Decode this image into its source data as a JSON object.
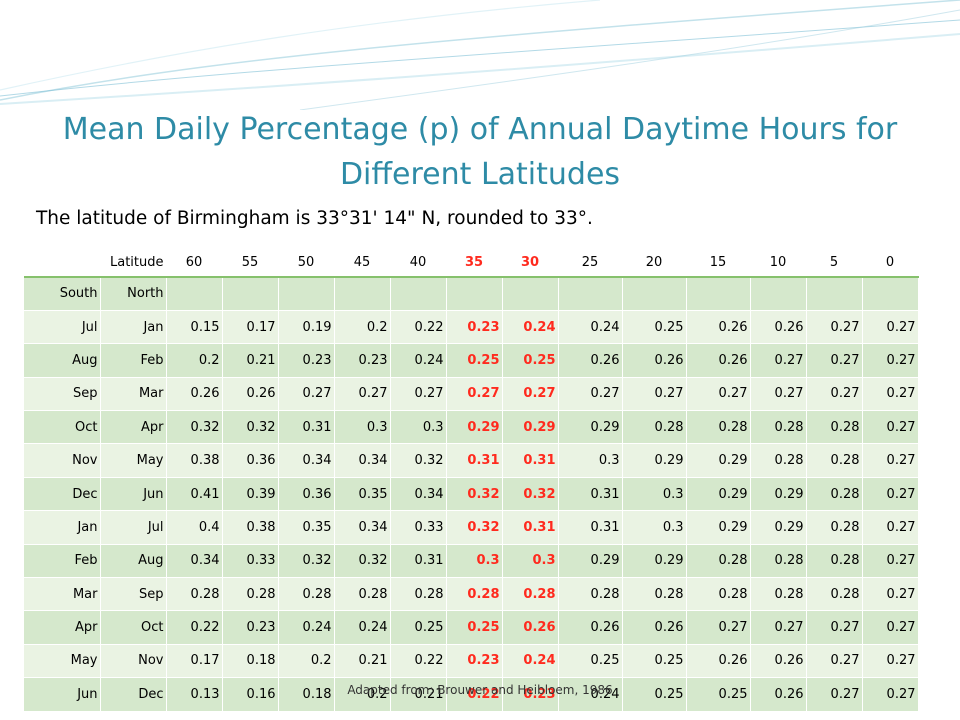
{
  "slide": {
    "title": "Mean Daily Percentage (p) of Annual Daytime Hours for Different Latitudes",
    "subtitle": "The latitude of Birmingham is 33°31' 14\" N, rounded to 33°.",
    "source": "Adapted from: Brouwer and Heibloem, 1986"
  },
  "colors": {
    "title": "#2e8ba6",
    "highlight": "#ff2a1e",
    "row_band_dark": "#d5e8cc",
    "row_band_light": "#eaf3e3",
    "header_rule": "#86c16c"
  },
  "table": {
    "header_label": "Latitude",
    "latitudes": [
      "60",
      "55",
      "50",
      "45",
      "40",
      "35",
      "30",
      "25",
      "20",
      "15",
      "10",
      "5",
      "0"
    ],
    "highlight_columns": [
      "35",
      "30"
    ],
    "hemisphere_labels": [
      "South",
      "North"
    ],
    "rows": [
      {
        "south": "Jul",
        "north": "Jan",
        "values": [
          "0.15",
          "0.17",
          "0.19",
          "0.2",
          "0.22",
          "0.23",
          "0.24",
          "0.24",
          "0.25",
          "0.26",
          "0.26",
          "0.27",
          "0.27"
        ]
      },
      {
        "south": "Aug",
        "north": "Feb",
        "values": [
          "0.2",
          "0.21",
          "0.23",
          "0.23",
          "0.24",
          "0.25",
          "0.25",
          "0.26",
          "0.26",
          "0.26",
          "0.27",
          "0.27",
          "0.27"
        ]
      },
      {
        "south": "Sep",
        "north": "Mar",
        "values": [
          "0.26",
          "0.26",
          "0.27",
          "0.27",
          "0.27",
          "0.27",
          "0.27",
          "0.27",
          "0.27",
          "0.27",
          "0.27",
          "0.27",
          "0.27"
        ]
      },
      {
        "south": "Oct",
        "north": "Apr",
        "values": [
          "0.32",
          "0.32",
          "0.31",
          "0.3",
          "0.3",
          "0.29",
          "0.29",
          "0.29",
          "0.28",
          "0.28",
          "0.28",
          "0.28",
          "0.27"
        ]
      },
      {
        "south": "Nov",
        "north": "May",
        "values": [
          "0.38",
          "0.36",
          "0.34",
          "0.34",
          "0.32",
          "0.31",
          "0.31",
          "0.3",
          "0.29",
          "0.29",
          "0.28",
          "0.28",
          "0.27"
        ]
      },
      {
        "south": "Dec",
        "north": "Jun",
        "values": [
          "0.41",
          "0.39",
          "0.36",
          "0.35",
          "0.34",
          "0.32",
          "0.32",
          "0.31",
          "0.3",
          "0.29",
          "0.29",
          "0.28",
          "0.27"
        ]
      },
      {
        "south": "Jan",
        "north": "Jul",
        "values": [
          "0.4",
          "0.38",
          "0.35",
          "0.34",
          "0.33",
          "0.32",
          "0.31",
          "0.31",
          "0.3",
          "0.29",
          "0.29",
          "0.28",
          "0.27"
        ]
      },
      {
        "south": "Feb",
        "north": "Aug",
        "values": [
          "0.34",
          "0.33",
          "0.32",
          "0.32",
          "0.31",
          "0.3",
          "0.3",
          "0.29",
          "0.29",
          "0.28",
          "0.28",
          "0.28",
          "0.27"
        ]
      },
      {
        "south": "Mar",
        "north": "Sep",
        "values": [
          "0.28",
          "0.28",
          "0.28",
          "0.28",
          "0.28",
          "0.28",
          "0.28",
          "0.28",
          "0.28",
          "0.28",
          "0.28",
          "0.28",
          "0.27"
        ]
      },
      {
        "south": "Apr",
        "north": "Oct",
        "values": [
          "0.22",
          "0.23",
          "0.24",
          "0.24",
          "0.25",
          "0.25",
          "0.26",
          "0.26",
          "0.26",
          "0.27",
          "0.27",
          "0.27",
          "0.27"
        ]
      },
      {
        "south": "May",
        "north": "Nov",
        "values": [
          "0.17",
          "0.18",
          "0.2",
          "0.21",
          "0.22",
          "0.23",
          "0.24",
          "0.25",
          "0.25",
          "0.26",
          "0.26",
          "0.27",
          "0.27"
        ]
      },
      {
        "south": "Jun",
        "north": "Dec",
        "values": [
          "0.13",
          "0.16",
          "0.18",
          "0.2",
          "0.21",
          "0.22",
          "0.23",
          "0.24",
          "0.25",
          "0.25",
          "0.26",
          "0.27",
          "0.27"
        ]
      }
    ]
  }
}
